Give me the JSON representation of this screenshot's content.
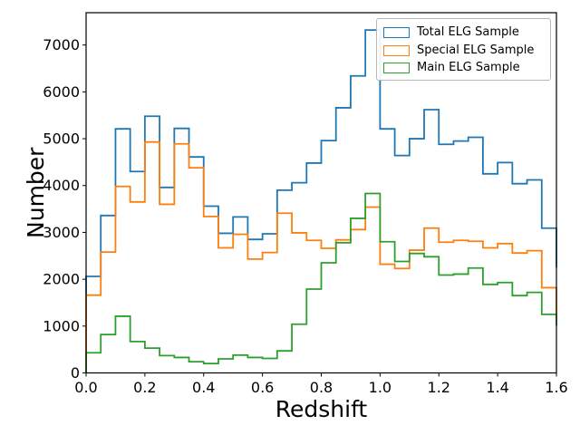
{
  "chart_data": {
    "type": "step-histogram",
    "title": "",
    "xlabel": "Redshift",
    "ylabel": "Number",
    "xlim": [
      0.0,
      1.6
    ],
    "ylim": [
      0,
      7690
    ],
    "bin_start": 0.0,
    "bin_width": 0.05,
    "grid": false,
    "legend_position": "top-right",
    "xticks": [
      0.0,
      0.2,
      0.4,
      0.6,
      0.8,
      1.0,
      1.2,
      1.4,
      1.6
    ],
    "xtick_labels": [
      "0.0",
      "0.2",
      "0.4",
      "0.6",
      "0.8",
      "1.0",
      "1.2",
      "1.4",
      "1.6"
    ],
    "yticks": [
      0,
      1000,
      2000,
      3000,
      4000,
      5000,
      6000,
      7000
    ],
    "ytick_labels": [
      "0",
      "1000",
      "2000",
      "3000",
      "4000",
      "5000",
      "6000",
      "7000"
    ],
    "series": [
      {
        "name": "Total ELG Sample",
        "color": "#1f77b4",
        "values": [
          2060,
          3360,
          5210,
          4300,
          5480,
          3960,
          5220,
          4610,
          3560,
          2980,
          3330,
          2850,
          2970,
          3900,
          4060,
          4480,
          4960,
          5660,
          6340,
          7320,
          5210,
          4640,
          5000,
          5620,
          4880,
          4950,
          5030,
          4250,
          4490,
          4040,
          4120,
          3090
        ],
        "right_edge_drop_to": 2250
      },
      {
        "name": "Special ELG Sample",
        "color": "#ff7f0e",
        "values": [
          1660,
          2580,
          3980,
          3650,
          4930,
          3600,
          4890,
          4380,
          3340,
          2670,
          2960,
          2430,
          2570,
          3410,
          2990,
          2830,
          2660,
          2840,
          3060,
          3540,
          2320,
          2230,
          2620,
          3090,
          2790,
          2830,
          2810,
          2670,
          2760,
          2560,
          2610,
          1820
        ],
        "right_edge_drop_to": 1250
      },
      {
        "name": "Main ELG Sample",
        "color": "#2ca02c",
        "values": [
          430,
          820,
          1210,
          670,
          530,
          370,
          330,
          240,
          200,
          300,
          380,
          330,
          310,
          470,
          1040,
          1790,
          2350,
          2780,
          3300,
          3830,
          2800,
          2380,
          2550,
          2480,
          2090,
          2110,
          2240,
          1890,
          1930,
          1650,
          1720,
          1250
        ],
        "right_edge_drop_to": 1010
      }
    ]
  }
}
